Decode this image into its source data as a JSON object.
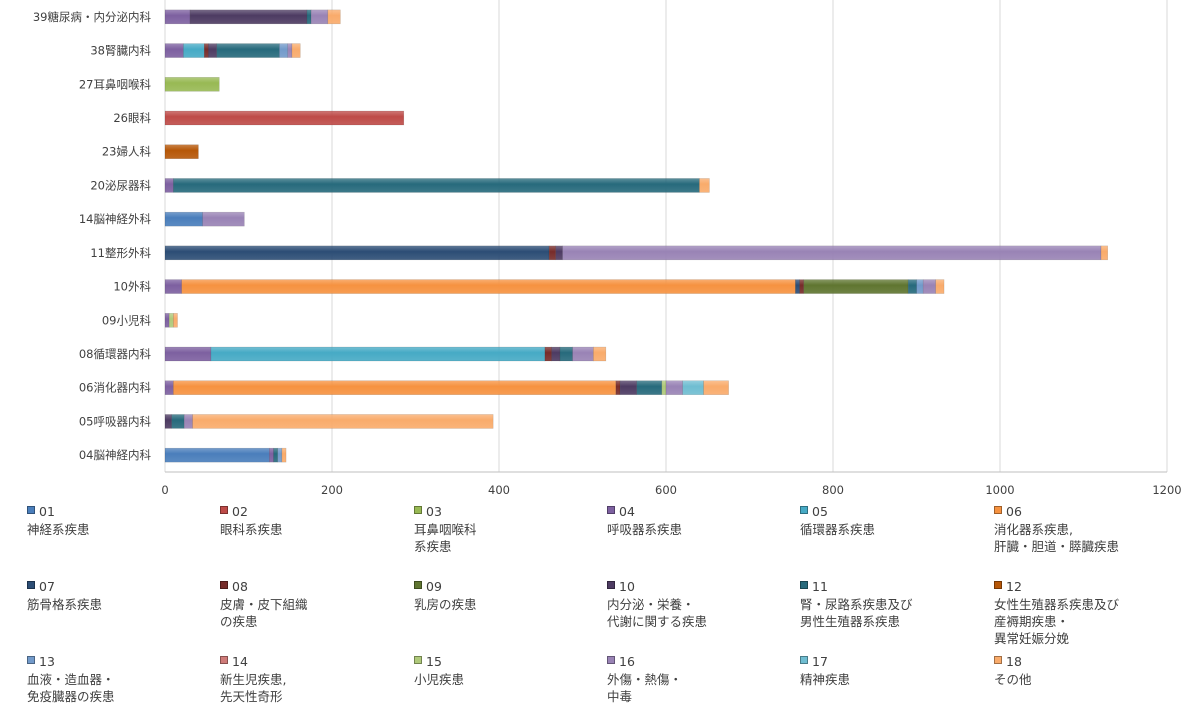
{
  "chart_data": {
    "type": "bar",
    "orientation": "horizontal",
    "stacked": true,
    "xlim": [
      0,
      1200
    ],
    "x_ticks": [
      "0",
      "200",
      "400",
      "600",
      "800",
      "1000",
      "1200"
    ],
    "grid": true,
    "legend_position": "bottom",
    "categories": [
      "39糖尿病・内分泌内科",
      "38腎臓内科",
      "27耳鼻咽喉科",
      "26眼科",
      "23婦人科",
      "20泌尿器科",
      "14脳神経外科",
      "11整形外科",
      "10外科",
      "09小児科",
      "08循環器内科",
      "06消化器内科",
      "05呼吸器内科",
      "04脳神経内科"
    ],
    "series": [
      {
        "code": "01",
        "name": "神経系疾患",
        "color": "#4a7ebb",
        "values": [
          0,
          0,
          0,
          0,
          0,
          0,
          45,
          0,
          0,
          0,
          0,
          0,
          0,
          125
        ]
      },
      {
        "code": "02",
        "name": "眼科系疾患",
        "color": "#be4b48",
        "values": [
          0,
          0,
          0,
          286,
          0,
          0,
          0,
          0,
          0,
          0,
          0,
          0,
          0,
          0
        ]
      },
      {
        "code": "03",
        "name": "耳鼻咽喉科\n系疾患",
        "color": "#98b954",
        "values": [
          0,
          0,
          65,
          0,
          0,
          0,
          0,
          0,
          0,
          0,
          0,
          0,
          0,
          0
        ]
      },
      {
        "code": "04",
        "name": "呼吸器系疾患",
        "color": "#7d60a0",
        "values": [
          30,
          22,
          0,
          0,
          0,
          10,
          0,
          0,
          20,
          5,
          55,
          10,
          0,
          5
        ]
      },
      {
        "code": "05",
        "name": "循環器系疾患",
        "color": "#46aac5",
        "values": [
          0,
          25,
          0,
          0,
          0,
          0,
          0,
          0,
          0,
          0,
          400,
          0,
          0,
          0
        ]
      },
      {
        "code": "06",
        "name": "消化器系疾患,\n肝臓・胆道・膵臓疾患",
        "color": "#f69240",
        "values": [
          0,
          0,
          0,
          0,
          0,
          0,
          0,
          0,
          735,
          0,
          0,
          530,
          0,
          0
        ]
      },
      {
        "code": "07",
        "name": "筋骨格系疾患",
        "color": "#2c4d75",
        "values": [
          0,
          0,
          0,
          0,
          0,
          0,
          0,
          460,
          5,
          0,
          0,
          0,
          0,
          0
        ]
      },
      {
        "code": "08",
        "name": "皮膚・皮下組織\nの疾患",
        "color": "#772c2a",
        "values": [
          0,
          5,
          0,
          0,
          0,
          0,
          0,
          8,
          5,
          0,
          8,
          5,
          0,
          0
        ]
      },
      {
        "code": "09",
        "name": "乳房の疾患",
        "color": "#5f7530",
        "values": [
          0,
          0,
          0,
          0,
          0,
          0,
          0,
          0,
          125,
          0,
          0,
          0,
          0,
          0
        ]
      },
      {
        "code": "10",
        "name": "内分泌・栄養・\n代謝に関する疾患",
        "color": "#4d3b62",
        "values": [
          140,
          10,
          0,
          0,
          0,
          0,
          0,
          8,
          0,
          0,
          10,
          20,
          8,
          0
        ]
      },
      {
        "code": "11",
        "name": "腎・尿路系疾患及び\n男性生殖器系疾患",
        "color": "#276a7c",
        "values": [
          5,
          75,
          0,
          0,
          0,
          630,
          0,
          0,
          10,
          0,
          15,
          30,
          15,
          5
        ]
      },
      {
        "code": "12",
        "name": "女性生殖器系疾患及び\n産褥期疾患・\n異常妊娠分娩",
        "color": "#b65708",
        "values": [
          0,
          0,
          0,
          0,
          40,
          0,
          0,
          0,
          0,
          0,
          0,
          0,
          0,
          0
        ]
      },
      {
        "code": "13",
        "name": "血液・造血器・\n免疫臓器の疾患",
        "color": "#729aca",
        "values": [
          0,
          10,
          0,
          0,
          0,
          0,
          0,
          0,
          8,
          0,
          0,
          0,
          0,
          5
        ]
      },
      {
        "code": "14",
        "name": "新生児疾患,\n先天性奇形",
        "color": "#cf7b79",
        "values": [
          0,
          0,
          0,
          0,
          0,
          0,
          0,
          0,
          0,
          0,
          0,
          0,
          0,
          0
        ]
      },
      {
        "code": "15",
        "name": "小児疾患",
        "color": "#afc97a",
        "values": [
          0,
          0,
          0,
          0,
          0,
          0,
          0,
          0,
          0,
          5,
          0,
          5,
          0,
          0
        ]
      },
      {
        "code": "16",
        "name": "外傷・熱傷・\n中毒",
        "color": "#9983b5",
        "values": [
          20,
          5,
          0,
          0,
          0,
          0,
          50,
          645,
          15,
          0,
          25,
          20,
          10,
          0
        ]
      },
      {
        "code": "17",
        "name": "精神疾患",
        "color": "#6fbdd1",
        "values": [
          0,
          0,
          0,
          0,
          0,
          0,
          0,
          0,
          0,
          0,
          0,
          25,
          0,
          0
        ]
      },
      {
        "code": "18",
        "name": "その他",
        "color": "#f9ab6b",
        "values": [
          15,
          10,
          0,
          0,
          0,
          12,
          0,
          8,
          10,
          5,
          15,
          30,
          360,
          5
        ]
      }
    ]
  }
}
